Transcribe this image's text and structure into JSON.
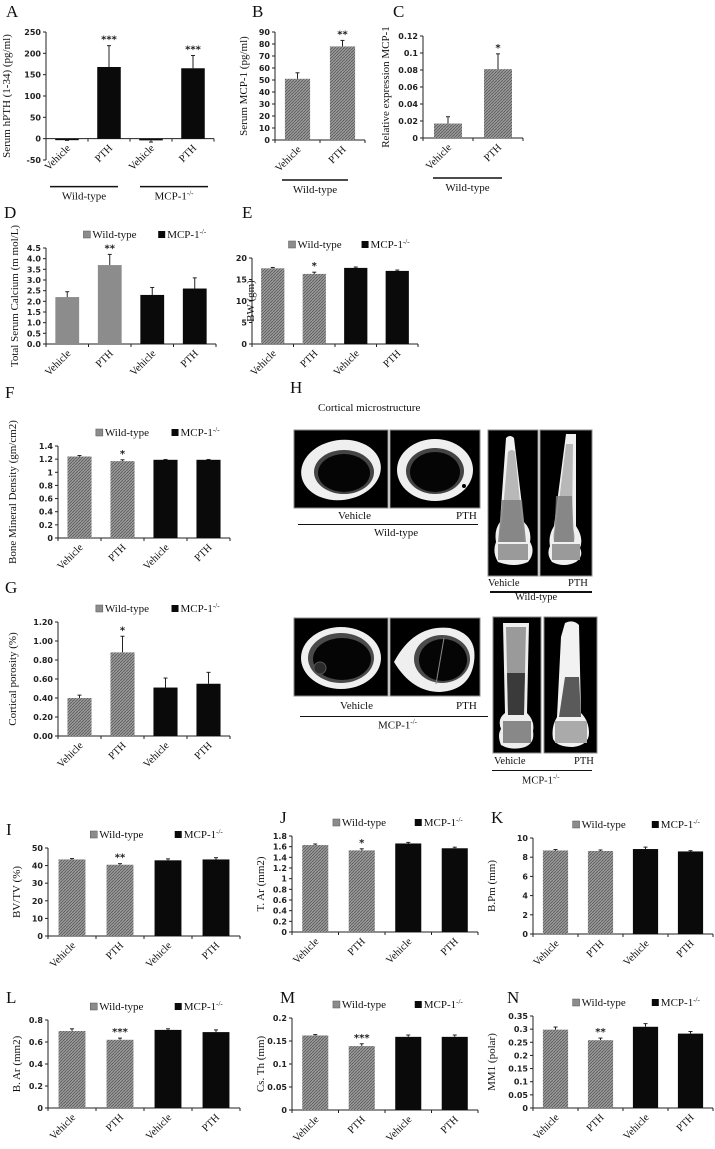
{
  "figure": {
    "panel_labels": [
      "A",
      "B",
      "C",
      "D",
      "E",
      "F",
      "G",
      "H",
      "I",
      "J",
      "K",
      "L",
      "M",
      "N"
    ],
    "legend": {
      "wild_type": "Wild-type",
      "mcp1": "MCP-1",
      "mcp1_sup": "-/-"
    },
    "colors": {
      "wild_type": "#8c8c8c",
      "mcp1": "#0a0a0a",
      "axis": "#222222"
    },
    "h": {
      "title": "Cortical microstructure",
      "top": {
        "vehicle": "Vehicle",
        "pth": "PTH",
        "group": "Wild-type"
      },
      "bottom": {
        "vehicle": "Vehicle",
        "pth": "PTH",
        "group": "MCP-1",
        "group_sup": "-/-"
      }
    }
  },
  "chart_data": [
    {
      "panel": "A",
      "type": "bar",
      "title": "",
      "xlabel": "",
      "ylabel": "Serum hPTH (1-34) (pg/ml)",
      "categories": [
        "Vehicle",
        "PTH",
        "Vehicle",
        "PTH"
      ],
      "groups": [
        "Wild-type",
        "MCP-1-/-"
      ],
      "values": [
        -2,
        168,
        -4,
        165
      ],
      "errors": [
        2,
        50,
        4,
        30
      ],
      "significance": [
        "",
        "***",
        "",
        "***"
      ],
      "bar_colors": [
        "#0a0a0a",
        "#0a0a0a",
        "#0a0a0a",
        "#0a0a0a"
      ],
      "ylim": [
        -50,
        250
      ],
      "yticks": [
        -50,
        0,
        50,
        100,
        150,
        200,
        250
      ],
      "legend": false
    },
    {
      "panel": "B",
      "type": "bar",
      "ylabel": "Serum MCP-1 (pg/ml)",
      "categories": [
        "Vehicle",
        "PTH"
      ],
      "groups": [
        "Wild-type"
      ],
      "values": [
        51,
        78
      ],
      "errors": [
        5,
        5
      ],
      "significance": [
        "",
        "**"
      ],
      "ylim": [
        0,
        90
      ],
      "yticks": [
        0,
        10,
        20,
        30,
        40,
        50,
        60,
        70,
        80,
        90
      ],
      "legend": false
    },
    {
      "panel": "C",
      "type": "bar",
      "ylabel": "Relative expression MCP-1",
      "categories": [
        "Vehicle",
        "PTH"
      ],
      "groups": [
        "Wild-type"
      ],
      "values": [
        0.017,
        0.081
      ],
      "errors": [
        0.008,
        0.018
      ],
      "significance": [
        "",
        "*"
      ],
      "ylim": [
        0,
        0.12
      ],
      "yticks": [
        0,
        0.02,
        0.04,
        0.06,
        0.08,
        0.1,
        0.12
      ],
      "legend": false
    },
    {
      "panel": "D",
      "type": "bar",
      "ylabel": "Total Serum Calcium (m mol/L)",
      "categories": [
        "Vehicle",
        "PTH",
        "Vehicle",
        "PTH"
      ],
      "series": [
        {
          "name": "Wild-type",
          "values": [
            2.2,
            3.7,
            null,
            null
          ]
        },
        {
          "name": "MCP-1-/-",
          "values": [
            null,
            null,
            2.3,
            2.6
          ]
        }
      ],
      "values": [
        2.2,
        3.7,
        2.3,
        2.6
      ],
      "errors": [
        0.25,
        0.5,
        0.35,
        0.5
      ],
      "significance": [
        "",
        "**",
        "",
        ""
      ],
      "ylim": [
        0,
        4.5
      ],
      "yticks": [
        0.0,
        0.5,
        1.0,
        1.5,
        2.0,
        2.5,
        3.0,
        3.5,
        4.0,
        4.5
      ],
      "legend": true
    },
    {
      "panel": "E",
      "type": "bar",
      "ylabel": "BW (gm)",
      "categories": [
        "Vehicle",
        "PTH",
        "Vehicle",
        "PTH"
      ],
      "values": [
        17.6,
        16.3,
        17.7,
        17.0
      ],
      "errors": [
        0.2,
        0.4,
        0.2,
        0.2
      ],
      "significance": [
        "",
        "*",
        "",
        ""
      ],
      "ylim": [
        0,
        20
      ],
      "yticks": [
        0,
        5,
        10,
        15,
        20
      ],
      "legend": true
    },
    {
      "panel": "F",
      "type": "bar",
      "ylabel": "Bone Mineral Density (gm/cm2)",
      "categories": [
        "Vehicle",
        "PTH",
        "Vehicle",
        "PTH"
      ],
      "values": [
        1.24,
        1.17,
        1.19,
        1.19
      ],
      "errors": [
        0.015,
        0.02,
        0.005,
        0.005
      ],
      "significance": [
        "",
        "*",
        "",
        ""
      ],
      "ylim": [
        0,
        1.4
      ],
      "yticks": [
        0,
        0.2,
        0.4,
        0.6,
        0.8,
        1,
        1.2,
        1.4
      ],
      "legend": true
    },
    {
      "panel": "G",
      "type": "bar",
      "ylabel": "Cortical porosity (%)",
      "categories": [
        "Vehicle",
        "PTH",
        "Vehicle",
        "PTH"
      ],
      "values": [
        0.4,
        0.88,
        0.51,
        0.55
      ],
      "errors": [
        0.03,
        0.17,
        0.1,
        0.12
      ],
      "significance": [
        "",
        "*",
        "",
        ""
      ],
      "ylim": [
        0,
        1.2
      ],
      "yticks": [
        0.0,
        0.2,
        0.4,
        0.6,
        0.8,
        1.0,
        1.2
      ],
      "legend": true
    },
    {
      "panel": "I",
      "type": "bar",
      "ylabel": "BV/TV (%)",
      "categories": [
        "Vehicle",
        "PTH",
        "Vehicle",
        "PTH"
      ],
      "values": [
        43.5,
        40.5,
        43.0,
        43.5
      ],
      "errors": [
        0.5,
        0.6,
        0.8,
        1.0
      ],
      "significance": [
        "",
        "**",
        "",
        ""
      ],
      "ylim": [
        0,
        50
      ],
      "yticks": [
        0,
        10,
        20,
        30,
        40,
        50
      ],
      "legend": true
    },
    {
      "panel": "J",
      "type": "bar",
      "ylabel": "T. Ar (mm2)",
      "categories": [
        "Vehicle",
        "PTH",
        "Vehicle",
        "PTH"
      ],
      "values": [
        1.63,
        1.53,
        1.66,
        1.57
      ],
      "errors": [
        0.02,
        0.03,
        0.02,
        0.02
      ],
      "significance": [
        "",
        "*",
        "",
        ""
      ],
      "ylim": [
        0,
        1.8
      ],
      "yticks": [
        0,
        0.2,
        0.4,
        0.6,
        0.8,
        1,
        1.2,
        1.4,
        1.6,
        1.8
      ],
      "legend": true
    },
    {
      "panel": "K",
      "type": "bar",
      "ylabel": "B.Pm (mm)",
      "categories": [
        "Vehicle",
        "PTH",
        "Vehicle",
        "PTH"
      ],
      "values": [
        8.7,
        8.65,
        8.85,
        8.6
      ],
      "errors": [
        0.1,
        0.1,
        0.2,
        0.08
      ],
      "significance": [
        "",
        "",
        "",
        ""
      ],
      "ylim": [
        0,
        10
      ],
      "yticks": [
        0,
        2,
        4,
        6,
        8,
        10
      ],
      "legend": true
    },
    {
      "panel": "L",
      "type": "bar",
      "ylabel": "B. Ar (mm2)",
      "categories": [
        "Vehicle",
        "PTH",
        "Vehicle",
        "PTH"
      ],
      "values": [
        0.7,
        0.62,
        0.71,
        0.69
      ],
      "errors": [
        0.02,
        0.015,
        0.01,
        0.02
      ],
      "significance": [
        "",
        "***",
        "",
        ""
      ],
      "ylim": [
        0,
        0.8
      ],
      "yticks": [
        0,
        0.2,
        0.4,
        0.6,
        0.8
      ],
      "legend": true
    },
    {
      "panel": "M",
      "type": "bar",
      "ylabel": "Cs. Th (mm)",
      "categories": [
        "Vehicle",
        "PTH",
        "Vehicle",
        "PTH"
      ],
      "values": [
        0.162,
        0.139,
        0.159,
        0.159
      ],
      "errors": [
        0.002,
        0.005,
        0.004,
        0.004
      ],
      "significance": [
        "",
        "***",
        "",
        ""
      ],
      "ylim": [
        0,
        0.2
      ],
      "yticks": [
        0,
        0.05,
        0.1,
        0.15,
        0.2
      ],
      "legend": true
    },
    {
      "panel": "N",
      "type": "bar",
      "ylabel": "MM1 (polar)",
      "categories": [
        "Vehicle",
        "PTH",
        "Vehicle",
        "PTH"
      ],
      "values": [
        0.298,
        0.258,
        0.309,
        0.283
      ],
      "errors": [
        0.01,
        0.008,
        0.012,
        0.008
      ],
      "significance": [
        "",
        "**",
        "",
        ""
      ],
      "ylim": [
        0,
        0.35
      ],
      "yticks": [
        0,
        0.05,
        0.1,
        0.15,
        0.2,
        0.25,
        0.3,
        0.35
      ],
      "legend": true
    }
  ]
}
